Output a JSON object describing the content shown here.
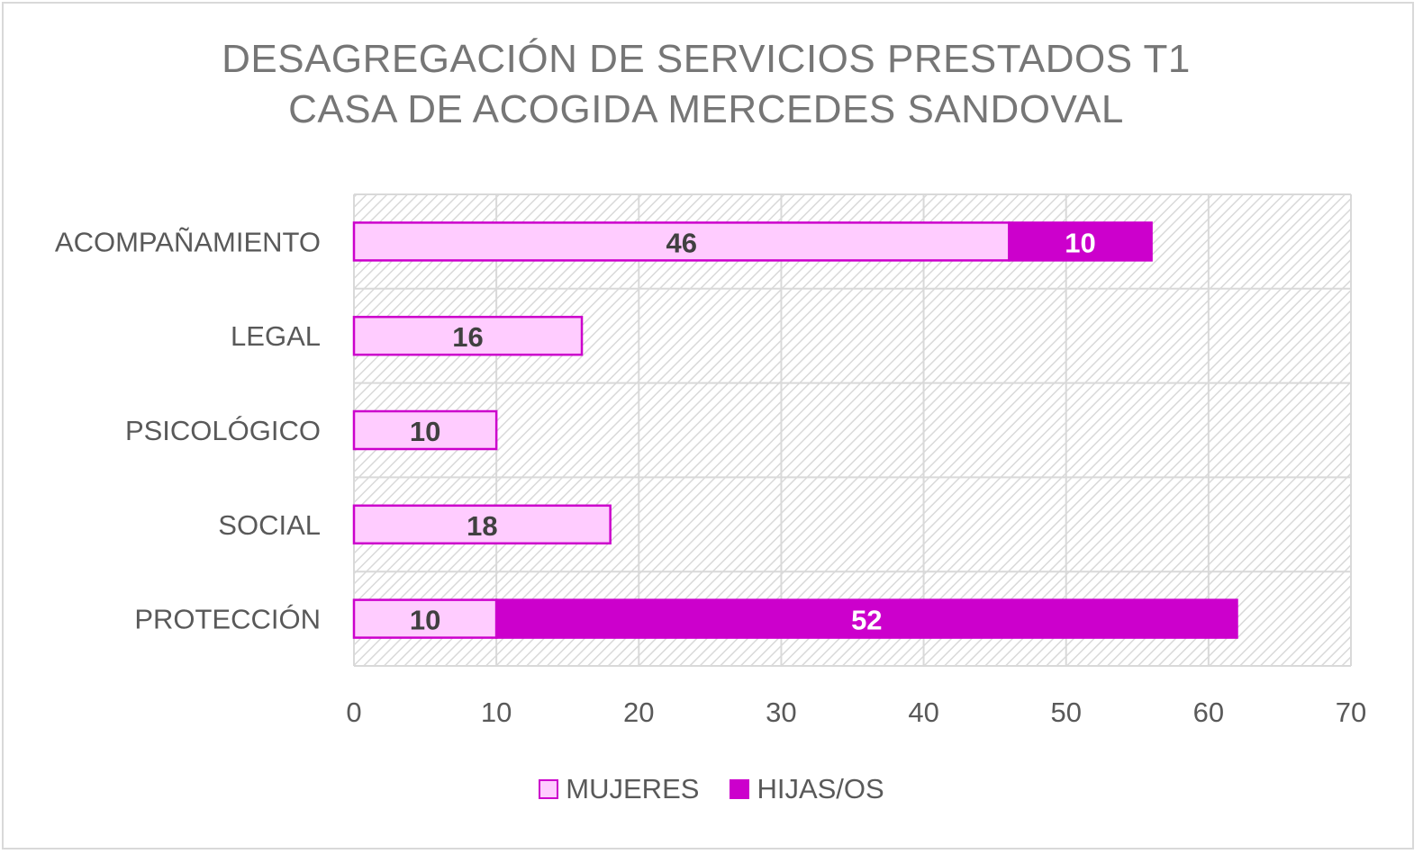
{
  "chart_data": {
    "type": "bar",
    "orientation": "horizontal",
    "stacked": true,
    "title_lines": [
      "DESAGREGACIÓN DE SERVICIOS PRESTADOS T1",
      "CASA DE ACOGIDA MERCEDES SANDOVAL"
    ],
    "categories": [
      "ACOMPAÑAMIENTO",
      "LEGAL",
      "PSICOLÓGICO",
      "SOCIAL",
      "PROTECCIÓN"
    ],
    "series": [
      {
        "name": "MUJERES",
        "values": [
          46,
          16,
          10,
          18,
          10
        ],
        "color": "#ffccff",
        "border": "#cc00cc",
        "label_color": "#404040"
      },
      {
        "name": "HIJAS/OS",
        "values": [
          10,
          null,
          null,
          null,
          52
        ],
        "color": "#cc00cc",
        "border": "#cc00cc",
        "label_color": "#ffffff"
      }
    ],
    "xlim": [
      0,
      70
    ],
    "xticks": [
      0,
      10,
      20,
      30,
      40,
      50,
      60,
      70
    ],
    "xlabel": "",
    "ylabel": "",
    "grid": true,
    "plot_background": "hatched-gray",
    "legend": "bottom"
  }
}
